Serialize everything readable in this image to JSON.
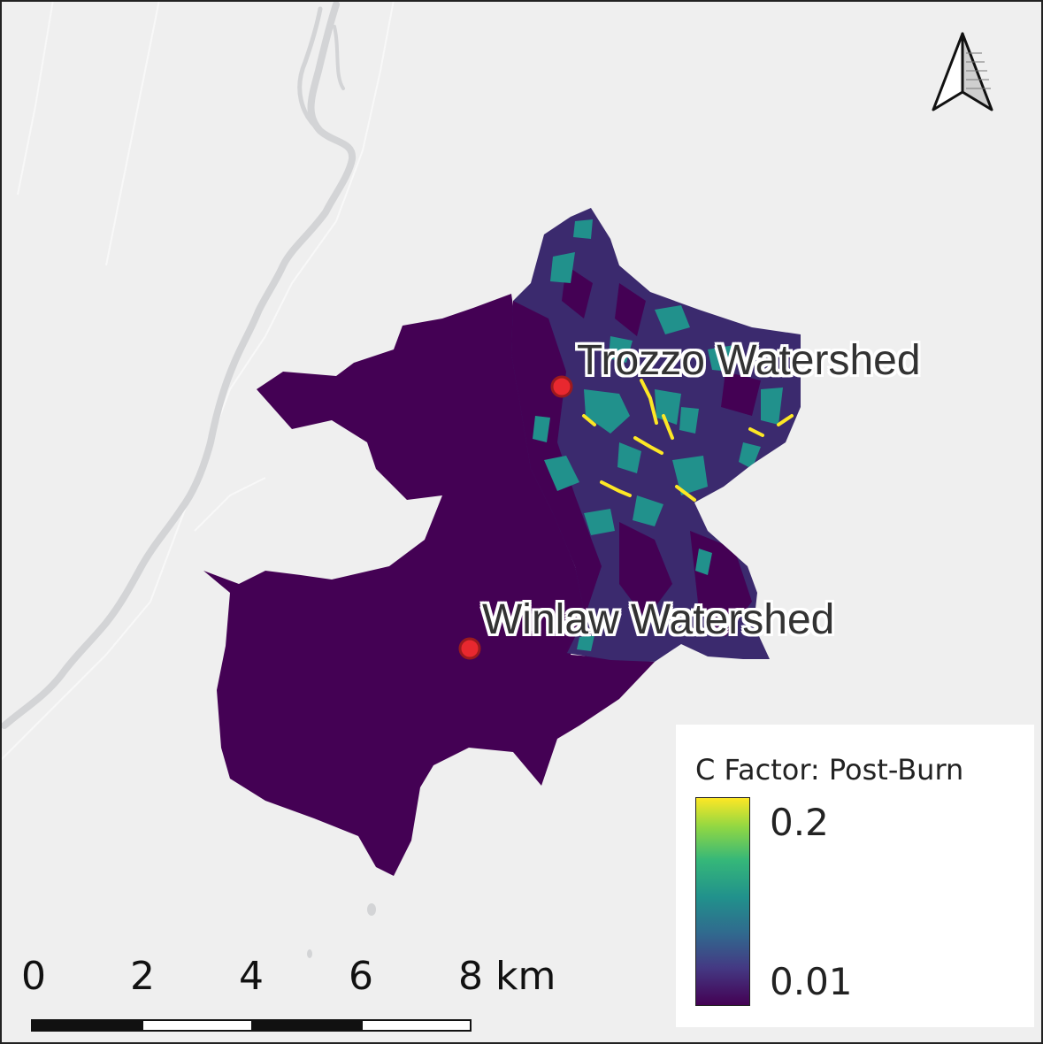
{
  "labels": {
    "trozzo": "Trozzo Watershed",
    "winlaw": "Winlaw Watershed"
  },
  "legend": {
    "title": "C Factor: Post-Burn",
    "max_label": "0.2",
    "min_label": "0.01"
  },
  "scale_bar": {
    "ticks": [
      "0",
      "2",
      "4",
      "6",
      "8 km"
    ]
  },
  "colors": {
    "background": "#efefef",
    "river": "#d3d4d6",
    "watershed_base": "#440154",
    "viridis_dark": "#3b2a6e",
    "viridis_teal": "#21918c",
    "viridis_yellow": "#fde725",
    "point": "#e8282f"
  },
  "icons": {
    "north_arrow": "north-arrow-icon"
  }
}
